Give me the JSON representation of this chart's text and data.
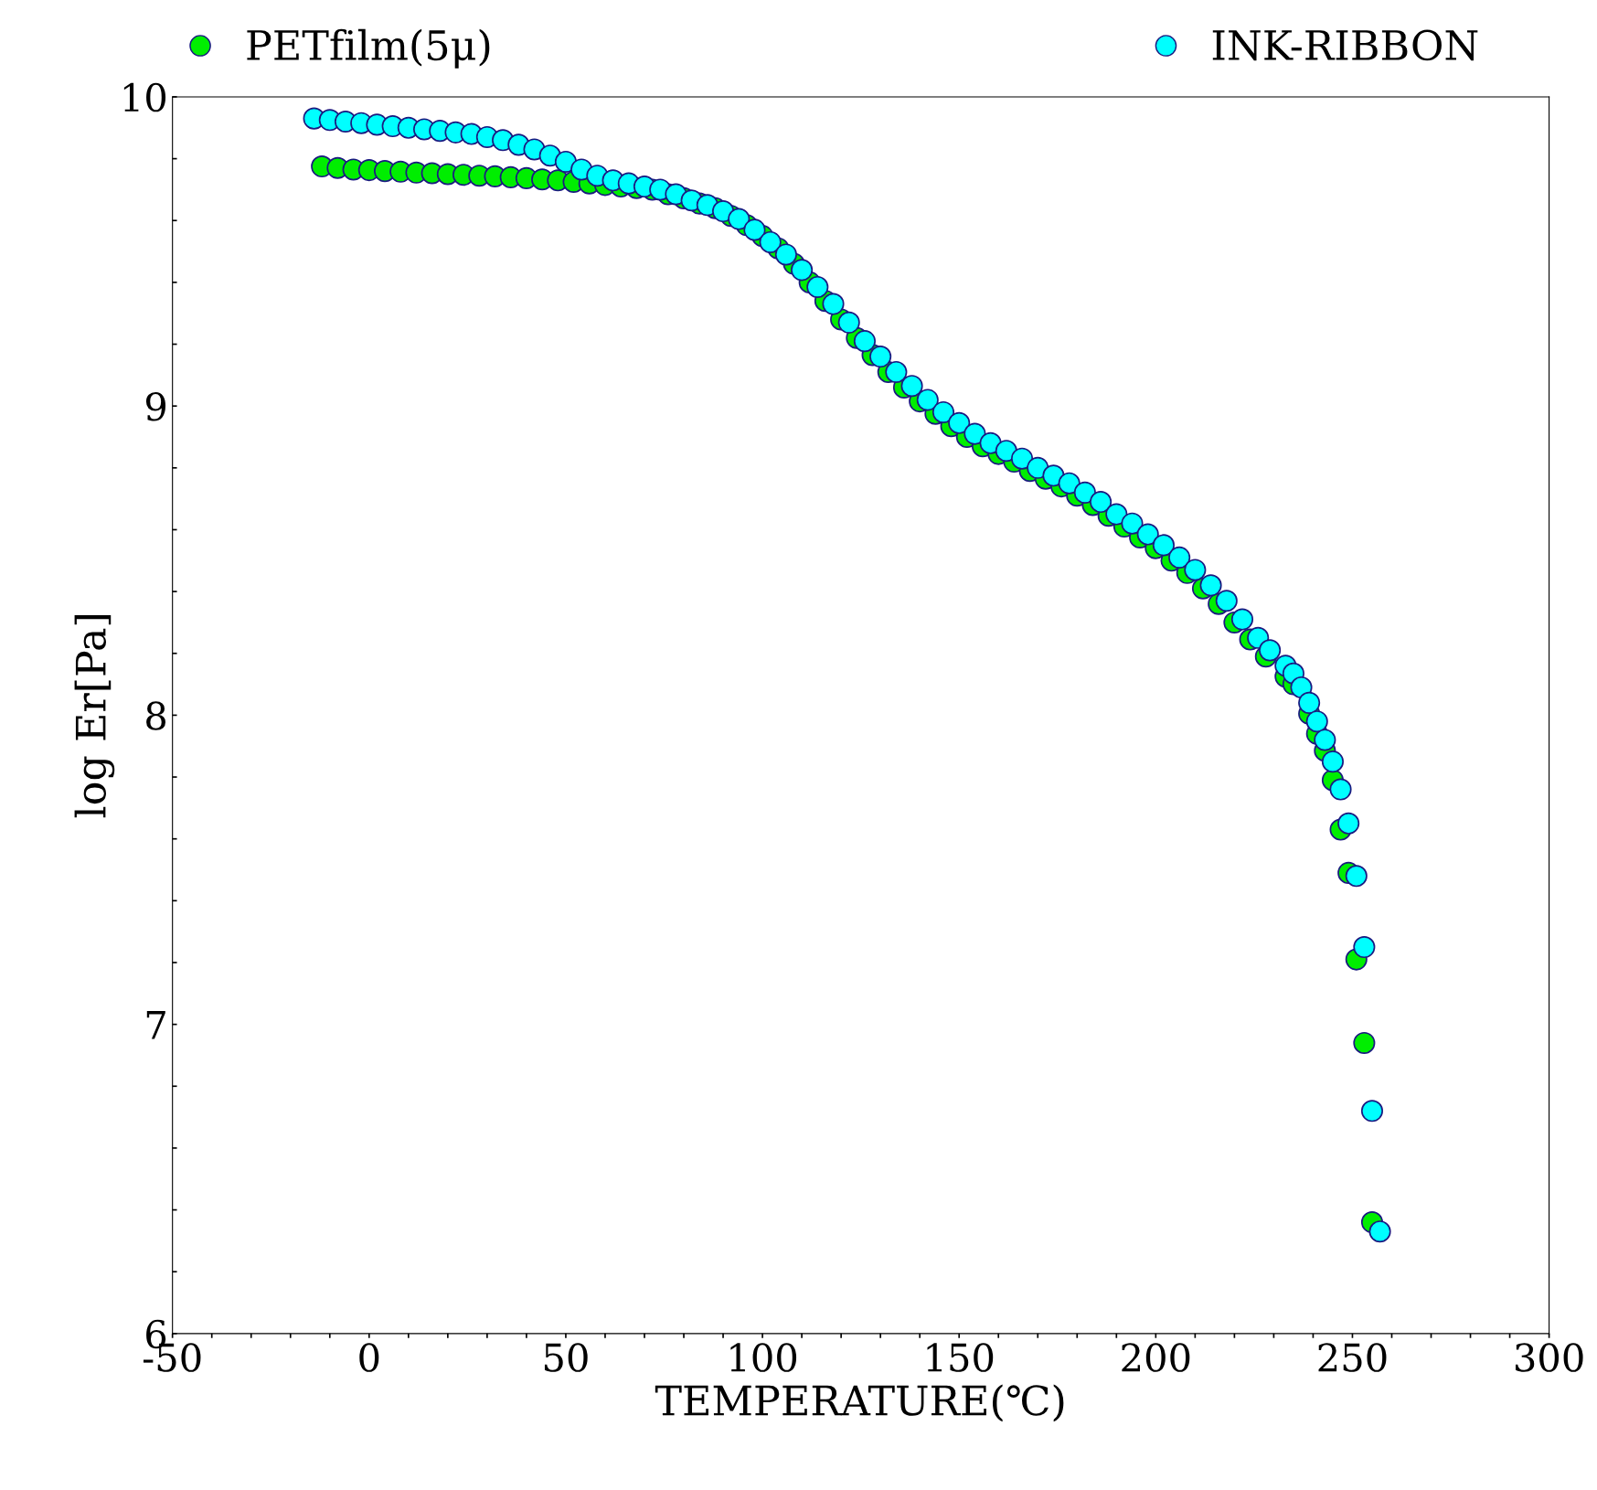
{
  "chart_data": {
    "type": "scatter",
    "xlabel": "TEMPERATURE(℃)",
    "ylabel": "log Er[Pa]",
    "xlim": [
      -50,
      300
    ],
    "ylim": [
      6,
      10
    ],
    "xticks": [
      -50,
      {
        "value": -40,
        "label": null
      },
      {
        "value": -30,
        "label": null
      },
      {
        "value": -20,
        "label": null
      },
      {
        "value": -10,
        "label": null
      },
      0,
      {
        "value": 10,
        "label": null
      },
      {
        "value": 20,
        "label": null
      },
      {
        "value": 30,
        "label": null
      },
      {
        "value": 40,
        "label": null
      },
      50,
      {
        "value": 60,
        "label": null
      },
      {
        "value": 70,
        "label": null
      },
      {
        "value": 80,
        "label": null
      },
      {
        "value": 90,
        "label": null
      },
      100,
      {
        "value": 110,
        "label": null
      },
      {
        "value": 120,
        "label": null
      },
      {
        "value": 130,
        "label": null
      },
      {
        "value": 140,
        "label": null
      },
      150,
      {
        "value": 160,
        "label": null
      },
      {
        "value": 170,
        "label": null
      },
      {
        "value": 180,
        "label": null
      },
      {
        "value": 190,
        "label": null
      },
      200,
      {
        "value": 210,
        "label": null
      },
      {
        "value": 220,
        "label": null
      },
      {
        "value": 230,
        "label": null
      },
      {
        "value": 240,
        "label": null
      },
      250,
      {
        "value": 260,
        "label": null
      },
      {
        "value": 270,
        "label": null
      },
      {
        "value": 280,
        "label": null
      },
      {
        "value": 290,
        "label": null
      },
      300
    ],
    "yticks": [
      6,
      {
        "value": 6.2,
        "label": null
      },
      {
        "value": 6.4,
        "label": null
      },
      {
        "value": 6.6,
        "label": null
      },
      {
        "value": 6.8,
        "label": null
      },
      7,
      {
        "value": 7.2,
        "label": null
      },
      {
        "value": 7.4,
        "label": null
      },
      {
        "value": 7.6,
        "label": null
      },
      {
        "value": 7.8,
        "label": null
      },
      8,
      {
        "value": 8.2,
        "label": null
      },
      {
        "value": 8.4,
        "label": null
      },
      {
        "value": 8.6,
        "label": null
      },
      {
        "value": 8.8,
        "label": null
      },
      9,
      {
        "value": 9.2,
        "label": null
      },
      {
        "value": 9.4,
        "label": null
      },
      {
        "value": 9.6,
        "label": null
      },
      {
        "value": 9.8,
        "label": null
      },
      10
    ],
    "grid": false,
    "legend": "top",
    "marker": "circle",
    "series": [
      {
        "name": "PETfilm(5μ)",
        "color": "#00ee00",
        "x": [
          -12,
          -8,
          -4,
          0,
          4,
          8,
          12,
          16,
          20,
          24,
          28,
          32,
          36,
          40,
          44,
          48,
          52,
          56,
          60,
          64,
          68,
          72,
          76,
          80,
          84,
          88,
          92,
          96,
          100,
          104,
          108,
          112,
          116,
          120,
          124,
          128,
          132,
          136,
          140,
          144,
          148,
          152,
          156,
          160,
          164,
          168,
          172,
          176,
          180,
          184,
          188,
          192,
          196,
          200,
          204,
          208,
          212,
          216,
          220,
          224,
          228,
          233,
          235,
          239,
          241,
          243,
          245,
          247,
          249,
          251,
          253,
          255
        ],
        "values": [
          9.775,
          9.77,
          9.765,
          9.763,
          9.76,
          9.758,
          9.755,
          9.753,
          9.75,
          9.748,
          9.745,
          9.743,
          9.74,
          9.737,
          9.733,
          9.73,
          9.725,
          9.72,
          9.715,
          9.71,
          9.705,
          9.7,
          9.685,
          9.672,
          9.655,
          9.64,
          9.615,
          9.585,
          9.55,
          9.51,
          9.46,
          9.4,
          9.34,
          9.28,
          9.22,
          9.165,
          9.11,
          9.06,
          9.015,
          8.975,
          8.935,
          8.9,
          8.87,
          8.845,
          8.82,
          8.79,
          8.765,
          8.74,
          8.71,
          8.68,
          8.645,
          8.61,
          8.575,
          8.54,
          8.5,
          8.46,
          8.41,
          8.36,
          8.3,
          8.245,
          8.19,
          8.125,
          8.1,
          8.005,
          7.94,
          7.885,
          7.79,
          7.63,
          7.49,
          7.21,
          6.94,
          6.36
        ]
      },
      {
        "name": "INK-RIBBON",
        "color": "#00ffff",
        "x": [
          -14,
          -10,
          -6,
          -2,
          2,
          6,
          10,
          14,
          18,
          22,
          26,
          30,
          34,
          38,
          42,
          46,
          50,
          54,
          58,
          62,
          66,
          70,
          74,
          78,
          82,
          86,
          90,
          94,
          98,
          102,
          106,
          110,
          114,
          118,
          122,
          126,
          130,
          134,
          138,
          142,
          146,
          150,
          154,
          158,
          162,
          166,
          170,
          174,
          178,
          182,
          186,
          190,
          194,
          198,
          202,
          206,
          210,
          214,
          218,
          222,
          226,
          229,
          233,
          235,
          237,
          239,
          241,
          243,
          245,
          247,
          249,
          251,
          253,
          255,
          257
        ],
        "values": [
          9.93,
          9.925,
          9.92,
          9.915,
          9.91,
          9.905,
          9.9,
          9.895,
          9.89,
          9.885,
          9.88,
          9.87,
          9.86,
          9.845,
          9.83,
          9.81,
          9.79,
          9.765,
          9.745,
          9.73,
          9.72,
          9.71,
          9.7,
          9.685,
          9.665,
          9.65,
          9.63,
          9.605,
          9.57,
          9.53,
          9.49,
          9.44,
          9.385,
          9.33,
          9.27,
          9.21,
          9.16,
          9.11,
          9.065,
          9.02,
          8.98,
          8.945,
          8.91,
          8.88,
          8.855,
          8.83,
          8.8,
          8.775,
          8.75,
          8.72,
          8.69,
          8.65,
          8.62,
          8.585,
          8.55,
          8.51,
          8.47,
          8.42,
          8.37,
          8.31,
          8.25,
          8.21,
          8.16,
          8.135,
          8.09,
          8.04,
          7.98,
          7.92,
          7.85,
          7.76,
          7.65,
          7.48,
          7.25,
          6.72,
          6.33
        ]
      }
    ]
  }
}
